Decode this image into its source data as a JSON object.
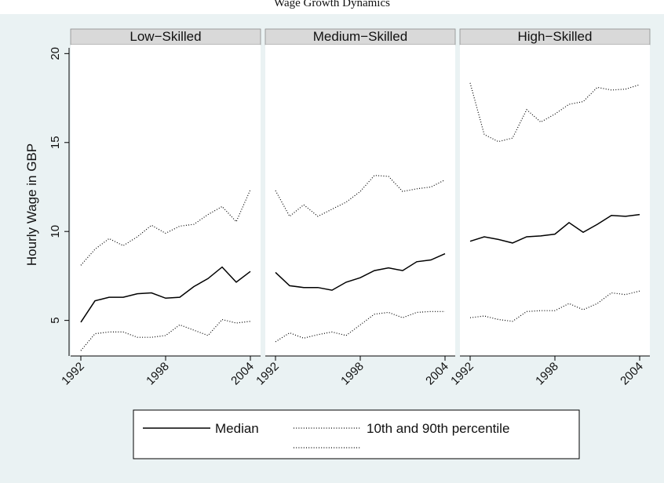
{
  "chart_data": {
    "type": "line",
    "title": "Wage Growth Dynamics",
    "ylabel": "Hourly Wage in GBP",
    "ylim": [
      3,
      20.5
    ],
    "yticks": [
      5,
      10,
      15,
      20
    ],
    "xlim": [
      1991.5,
      2004.5
    ],
    "xticks": [
      1992,
      1998,
      2004
    ],
    "x": [
      1992,
      1993,
      1994,
      1995,
      1996,
      1997,
      1998,
      1999,
      2000,
      2001,
      2002,
      2003,
      2004
    ],
    "grid": false,
    "legend_position": "bottom",
    "legend": {
      "median_label": "Median",
      "percentile_label": "10th and 90th percentile"
    },
    "panels": [
      {
        "title": "Low−Skilled",
        "series": [
          {
            "name": "Median",
            "style": "solid",
            "values": [
              4.9,
              6.1,
              6.3,
              6.3,
              6.5,
              6.55,
              6.25,
              6.3,
              6.9,
              7.35,
              8.0,
              7.15,
              7.75
            ]
          },
          {
            "name": "90th percentile",
            "style": "dotted",
            "values": [
              8.1,
              9.0,
              9.6,
              9.2,
              9.7,
              10.35,
              9.9,
              10.3,
              10.4,
              10.95,
              11.4,
              10.55,
              12.35
            ]
          },
          {
            "name": "10th percentile",
            "style": "dotted",
            "values": [
              3.3,
              4.25,
              4.35,
              4.35,
              4.05,
              4.05,
              4.15,
              4.75,
              4.45,
              4.15,
              5.05,
              4.85,
              4.95
            ]
          }
        ]
      },
      {
        "title": "Medium−Skilled",
        "series": [
          {
            "name": "Median",
            "style": "solid",
            "values": [
              7.7,
              6.95,
              6.85,
              6.85,
              6.7,
              7.15,
              7.4,
              7.8,
              7.95,
              7.8,
              8.3,
              8.4,
              8.75
            ]
          },
          {
            "name": "90th percentile",
            "style": "dotted",
            "values": [
              12.3,
              10.85,
              11.5,
              10.85,
              11.25,
              11.65,
              12.25,
              13.15,
              13.1,
              12.25,
              12.4,
              12.5,
              12.9
            ]
          },
          {
            "name": "10th percentile",
            "style": "dotted",
            "values": [
              3.8,
              4.3,
              4.0,
              4.2,
              4.35,
              4.15,
              4.75,
              5.35,
              5.45,
              5.15,
              5.45,
              5.5,
              5.5
            ]
          }
        ]
      },
      {
        "title": "High−Skilled",
        "series": [
          {
            "name": "Median",
            "style": "solid",
            "values": [
              9.45,
              9.7,
              9.55,
              9.35,
              9.7,
              9.75,
              9.85,
              10.5,
              9.95,
              10.4,
              10.9,
              10.85,
              10.95
            ]
          },
          {
            "name": "90th percentile",
            "style": "dotted",
            "values": [
              18.35,
              15.45,
              15.05,
              15.25,
              16.85,
              16.15,
              16.6,
              17.15,
              17.3,
              18.1,
              17.95,
              18.0,
              18.25
            ]
          },
          {
            "name": "10th percentile",
            "style": "dotted",
            "values": [
              5.15,
              5.25,
              5.05,
              4.95,
              5.5,
              5.55,
              5.55,
              5.95,
              5.6,
              5.95,
              6.55,
              6.45,
              6.65
            ]
          }
        ]
      }
    ]
  }
}
